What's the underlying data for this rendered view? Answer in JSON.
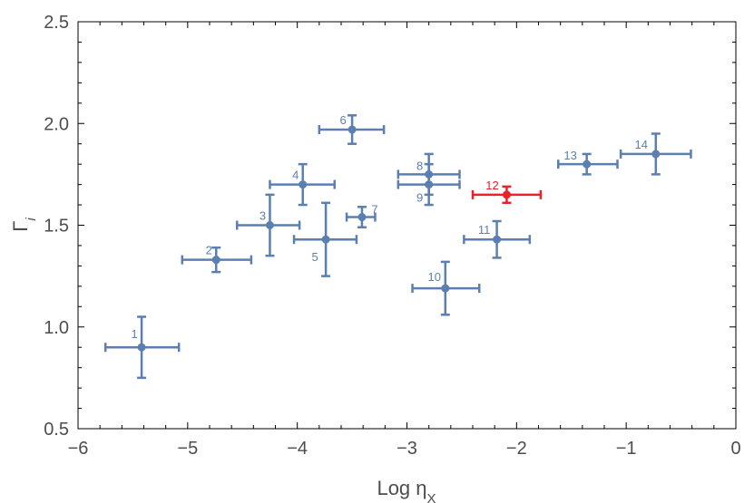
{
  "chart_data": {
    "type": "scatter",
    "xlabel": "Log ηX",
    "ylabel": "Γi",
    "xlim": [
      -6,
      0
    ],
    "ylim": [
      0.5,
      2.5
    ],
    "x_ticks": [
      "−6",
      "−5",
      "−4",
      "−3",
      "−2",
      "−1",
      "0"
    ],
    "y_ticks": [
      "0.5",
      "1.0",
      "1.5",
      "2.0",
      "2.5"
    ],
    "grid": false,
    "colors": {
      "default": "#5b7fb0",
      "highlight": "#e8212a",
      "frame": "#000000"
    },
    "points": [
      {
        "label": "1",
        "x": -5.42,
        "y": 0.9,
        "xlo": -5.75,
        "xhi": -5.08,
        "ylo": 0.75,
        "yhi": 1.05,
        "highlight": false
      },
      {
        "label": "2",
        "x": -4.74,
        "y": 1.33,
        "xlo": -5.05,
        "xhi": -4.42,
        "ylo": 1.27,
        "yhi": 1.39,
        "highlight": false
      },
      {
        "label": "3",
        "x": -4.25,
        "y": 1.5,
        "xlo": -4.55,
        "xhi": -3.98,
        "ylo": 1.35,
        "yhi": 1.65,
        "highlight": false
      },
      {
        "label": "4",
        "x": -3.95,
        "y": 1.7,
        "xlo": -4.25,
        "xhi": -3.66,
        "ylo": 1.6,
        "yhi": 1.8,
        "highlight": false
      },
      {
        "label": "5",
        "x": -3.74,
        "y": 1.43,
        "xlo": -4.03,
        "xhi": -3.46,
        "ylo": 1.25,
        "yhi": 1.61,
        "highlight": false
      },
      {
        "label": "6",
        "x": -3.5,
        "y": 1.97,
        "xlo": -3.8,
        "xhi": -3.21,
        "ylo": 1.9,
        "yhi": 2.04,
        "highlight": false
      },
      {
        "label": "7",
        "x": -3.41,
        "y": 1.54,
        "xlo": -3.55,
        "xhi": -3.29,
        "ylo": 1.49,
        "yhi": 1.59,
        "highlight": false
      },
      {
        "label": "8",
        "x": -2.8,
        "y": 1.75,
        "xlo": -3.08,
        "xhi": -2.52,
        "ylo": 1.65,
        "yhi": 1.85,
        "highlight": false
      },
      {
        "label": "9",
        "x": -2.8,
        "y": 1.7,
        "xlo": -3.08,
        "xhi": -2.52,
        "ylo": 1.6,
        "yhi": 1.8,
        "highlight": false
      },
      {
        "label": "10",
        "x": -2.65,
        "y": 1.19,
        "xlo": -2.95,
        "xhi": -2.34,
        "ylo": 1.06,
        "yhi": 1.32,
        "highlight": false
      },
      {
        "label": "11",
        "x": -2.18,
        "y": 1.43,
        "xlo": -2.48,
        "xhi": -1.88,
        "ylo": 1.34,
        "yhi": 1.52,
        "highlight": false
      },
      {
        "label": "12",
        "x": -2.09,
        "y": 1.65,
        "xlo": -2.4,
        "xhi": -1.78,
        "ylo": 1.61,
        "yhi": 1.69,
        "highlight": true
      },
      {
        "label": "13",
        "x": -1.36,
        "y": 1.8,
        "xlo": -1.62,
        "xhi": -1.08,
        "ylo": 1.75,
        "yhi": 1.85,
        "highlight": false
      },
      {
        "label": "14",
        "x": -0.73,
        "y": 1.85,
        "xlo": -1.05,
        "xhi": -0.41,
        "ylo": 1.75,
        "yhi": 1.95,
        "highlight": false
      }
    ]
  }
}
